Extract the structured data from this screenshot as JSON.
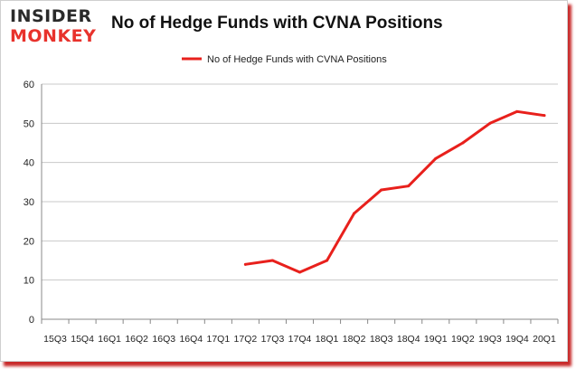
{
  "header": {
    "logo_line1": "INSIDER",
    "logo_line2": "MONKEY",
    "title": "No of Hedge Funds with CVNA Positions"
  },
  "colors": {
    "series": "#e8201c",
    "grid": "#c8c8c8",
    "axis": "#888888",
    "shadow": "#c82a2a"
  },
  "chart_data": {
    "type": "line",
    "title": "No of Hedge Funds with CVNA Positions",
    "xlabel": "",
    "ylabel": "",
    "ylim": [
      0,
      60
    ],
    "yticks": [
      0,
      10,
      20,
      30,
      40,
      50,
      60
    ],
    "grid": true,
    "legend": "top-center",
    "categories": [
      "15Q3",
      "15Q4",
      "16Q1",
      "16Q2",
      "16Q3",
      "16Q4",
      "17Q1",
      "17Q2",
      "17Q3",
      "17Q4",
      "18Q1",
      "18Q2",
      "18Q3",
      "18Q4",
      "19Q1",
      "19Q2",
      "19Q3",
      "19Q4",
      "20Q1"
    ],
    "series": [
      {
        "name": "No of Hedge Funds with CVNA Positions",
        "values": [
          null,
          null,
          null,
          null,
          null,
          null,
          null,
          14,
          15,
          12,
          15,
          27,
          33,
          34,
          41,
          45,
          50,
          53,
          52
        ]
      }
    ]
  }
}
